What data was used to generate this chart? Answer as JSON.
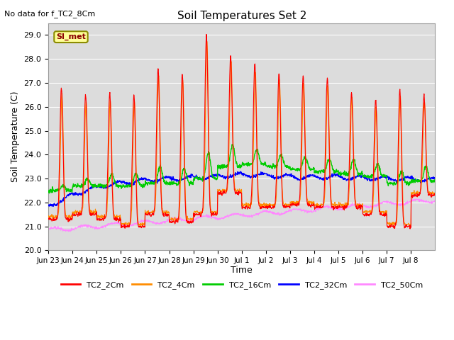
{
  "title": "Soil Temperatures Set 2",
  "subtitle": "No data for f_TC2_8Cm",
  "xlabel": "Time",
  "ylabel": "Soil Temperature (C)",
  "ylim": [
    20.0,
    29.5
  ],
  "yticks": [
    20.0,
    21.0,
    22.0,
    23.0,
    24.0,
    25.0,
    26.0,
    27.0,
    28.0,
    29.0
  ],
  "x_tick_labels": [
    "Jun 23",
    "Jun 24",
    "Jun 25",
    "Jun 26",
    "Jun 27",
    "Jun 28",
    "Jun 29",
    "Jun 30",
    "Jul 1",
    "Jul 2",
    "Jul 3",
    "Jul 4",
    "Jul 5",
    "Jul 6",
    "Jul 7",
    "Jul 8"
  ],
  "colors": {
    "TC2_2Cm": "#FF0000",
    "TC2_4Cm": "#FF8C00",
    "TC2_16Cm": "#00CC00",
    "TC2_32Cm": "#0000FF",
    "TC2_50Cm": "#FF88FF"
  },
  "background_color": "#DCDCDC",
  "n_points": 1440,
  "days": 16
}
